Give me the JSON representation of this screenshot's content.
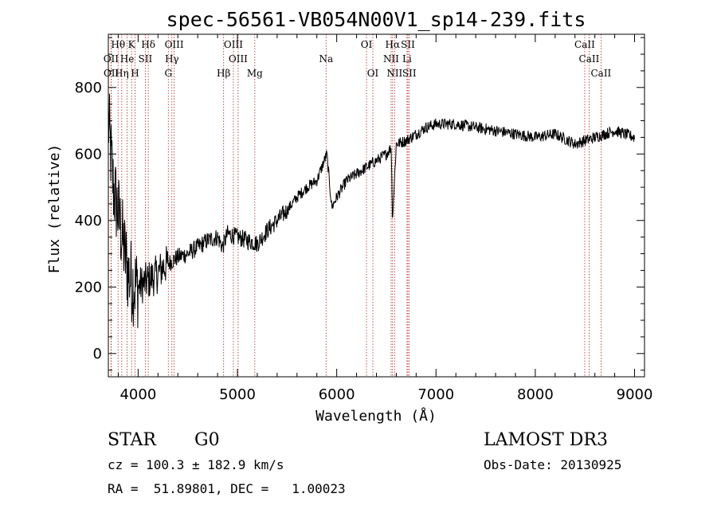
{
  "chart_data": {
    "type": "line",
    "title": "spec-56561-VB054N00V1_sp14-239.fits",
    "xlabel": "Wavelength (Å)",
    "ylabel": "Flux (relative)",
    "xlim": [
      3700,
      9100
    ],
    "ylim": [
      -70,
      960
    ],
    "xticks": [
      4000,
      5000,
      6000,
      7000,
      8000,
      9000
    ],
    "yticks": [
      0,
      200,
      400,
      600,
      800
    ],
    "series": [
      {
        "name": "flux",
        "x": [
          3700,
          3750,
          3800,
          3850,
          3900,
          3950,
          4000,
          4050,
          4100,
          4150,
          4200,
          4250,
          4300,
          4350,
          4400,
          4500,
          4600,
          4700,
          4800,
          4850,
          4900,
          5000,
          5100,
          5200,
          5300,
          5400,
          5500,
          5600,
          5700,
          5800,
          5850,
          5900,
          5950,
          6000,
          6100,
          6200,
          6300,
          6400,
          6500,
          6550,
          6563,
          6600,
          6700,
          6800,
          6900,
          7000,
          7200,
          7400,
          7600,
          7800,
          8000,
          8200,
          8400,
          8500,
          8600,
          8700,
          8800,
          8900,
          9000
        ],
        "y": [
          700,
          500,
          420,
          330,
          240,
          210,
          200,
          210,
          220,
          230,
          240,
          260,
          270,
          280,
          290,
          300,
          320,
          340,
          350,
          320,
          360,
          350,
          340,
          330,
          370,
          400,
          430,
          470,
          500,
          520,
          560,
          600,
          440,
          470,
          520,
          540,
          560,
          580,
          600,
          620,
          410,
          630,
          640,
          660,
          680,
          690,
          690,
          680,
          670,
          660,
          650,
          660,
          630,
          640,
          650,
          660,
          670,
          660,
          650
        ]
      }
    ],
    "lines": [
      {
        "name": "Hθ",
        "x": 3798,
        "row": 1
      },
      {
        "name": "K",
        "x": 3934,
        "row": 1
      },
      {
        "name": "Hδ",
        "x": 4102,
        "row": 1
      },
      {
        "name": "OIII",
        "x": 4363,
        "row": 1
      },
      {
        "name": "OIII",
        "x": 4959,
        "row": 1
      },
      {
        "name": "OI",
        "x": 6300,
        "row": 1
      },
      {
        "name": "Hα",
        "x": 6563,
        "row": 1
      },
      {
        "name": "SII",
        "x": 6717,
        "row": 1
      },
      {
        "name": "CaII",
        "x": 8498,
        "row": 1
      },
      {
        "name": "OII",
        "x": 3727,
        "row": 2
      },
      {
        "name": "He",
        "x": 3889,
        "row": 2
      },
      {
        "name": "SII",
        "x": 4072,
        "row": 2
      },
      {
        "name": "Hγ",
        "x": 4340,
        "row": 2
      },
      {
        "name": "OIII",
        "x": 5007,
        "row": 2
      },
      {
        "name": "Na",
        "x": 5893,
        "row": 2
      },
      {
        "name": "NII",
        "x": 6548,
        "row": 2
      },
      {
        "name": "Li",
        "x": 6708,
        "row": 2
      },
      {
        "name": "CaII",
        "x": 8542,
        "row": 2
      },
      {
        "name": "OII",
        "x": 3729,
        "row": 3
      },
      {
        "name": "Hη",
        "x": 3835,
        "row": 3
      },
      {
        "name": "H",
        "x": 3969,
        "row": 3
      },
      {
        "name": "G",
        "x": 4304,
        "row": 3
      },
      {
        "name": "Hβ",
        "x": 4861,
        "row": 3
      },
      {
        "name": "Mg",
        "x": 5175,
        "row": 3
      },
      {
        "name": "OI",
        "x": 6364,
        "row": 3
      },
      {
        "name": "NII",
        "x": 6583,
        "row": 3
      },
      {
        "name": "SII",
        "x": 6731,
        "row": 3
      },
      {
        "name": "CaII",
        "x": 8662,
        "row": 3
      }
    ]
  },
  "info": {
    "class": "STAR",
    "subclass": "G0",
    "survey": "LAMOST DR3",
    "cz": "cz = 100.3 ± 182.9 km/s",
    "obs_date": "Obs-Date: 20130925",
    "radec": "RA =  51.89801, DEC =   1.00023"
  },
  "colors": {
    "line_marker": "#b22222",
    "spectrum": "#000000",
    "axes": "#000000"
  }
}
